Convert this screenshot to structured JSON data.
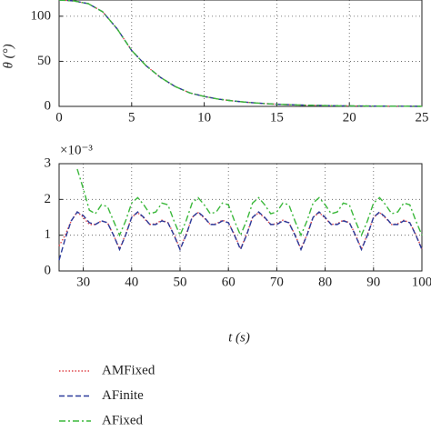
{
  "chart_data": [
    {
      "type": "line",
      "ylabel": "θ (°)",
      "xlim": [
        0,
        25
      ],
      "ylim": [
        0,
        118
      ],
      "xticks": [
        0,
        5,
        10,
        15,
        20,
        25
      ],
      "yticks": [
        0,
        50,
        100
      ],
      "grid": true,
      "x": [
        0,
        1,
        2,
        3,
        4,
        5,
        6,
        7,
        8,
        9,
        10,
        11,
        12,
        13,
        14,
        15,
        16,
        17,
        18,
        19,
        20,
        21,
        22,
        23,
        24,
        25
      ],
      "series": [
        {
          "name": "AMFixed",
          "color": "#e0474c",
          "linestyle": "dotted",
          "values": [
            118,
            117,
            114,
            105,
            86,
            62,
            45,
            32,
            22,
            15,
            11,
            8,
            6,
            4.5,
            3.3,
            2.4,
            1.8,
            1.3,
            1,
            0.7,
            0.5,
            0.4,
            0.3,
            0.2,
            0.15,
            0.1
          ]
        },
        {
          "name": "AFinite",
          "color": "#2b3a9a",
          "linestyle": "dashed",
          "values": [
            118,
            117,
            114,
            105,
            86,
            62,
            45,
            32,
            22,
            15,
            11,
            8,
            6,
            4.5,
            3.3,
            2.4,
            1.8,
            1.3,
            1,
            0.7,
            0.5,
            0.4,
            0.3,
            0.2,
            0.15,
            0.1
          ]
        },
        {
          "name": "AFixed",
          "color": "#3bb83b",
          "linestyle": "dashdot",
          "values": [
            118,
            117,
            114,
            105,
            86,
            62,
            45,
            32,
            22,
            15,
            11,
            8,
            6,
            4.5,
            3.3,
            2.4,
            1.8,
            1.3,
            1,
            0.7,
            0.5,
            0.4,
            0.3,
            0.2,
            0.15,
            0.1
          ]
        }
      ]
    },
    {
      "type": "line",
      "xlabel": "t (s)",
      "scale_label": "×10⁻³",
      "xlim": [
        25,
        100
      ],
      "ylim": [
        0,
        3
      ],
      "xticks": [
        30,
        40,
        50,
        60,
        70,
        80,
        90,
        100
      ],
      "yticks": [
        0,
        1,
        2,
        3
      ],
      "grid": true,
      "legend": "below",
      "x": [
        25,
        26.25,
        27.5,
        28.75,
        30,
        31.25,
        32.5,
        33.75,
        35,
        36.25,
        37.5,
        38.75,
        40,
        41.25,
        42.5,
        43.75,
        45,
        46.25,
        47.5,
        48.75,
        50,
        51.25,
        52.5,
        53.75,
        55,
        56.25,
        57.5,
        58.75,
        60,
        61.25,
        62.5,
        63.75,
        65,
        66.25,
        67.5,
        68.75,
        70,
        71.25,
        72.5,
        73.75,
        75,
        76.25,
        77.5,
        78.75,
        80,
        81.25,
        82.5,
        83.75,
        85,
        86.25,
        87.5,
        88.75,
        90,
        91.25,
        92.5,
        93.75,
        95,
        96.25,
        97.5,
        98.75,
        100
      ],
      "series": [
        {
          "name": "AMFixed",
          "color": "#e0474c",
          "linestyle": "dotted",
          "values": [
            0.7,
            1.0,
            1.4,
            1.65,
            1.5,
            1.3,
            1.3,
            1.4,
            1.35,
            1.0,
            0.62,
            1.02,
            1.5,
            1.63,
            1.48,
            1.3,
            1.32,
            1.42,
            1.35,
            1.02,
            0.62,
            1.02,
            1.5,
            1.63,
            1.48,
            1.3,
            1.32,
            1.42,
            1.35,
            1.02,
            0.62,
            1.02,
            1.5,
            1.63,
            1.48,
            1.3,
            1.32,
            1.42,
            1.35,
            1.02,
            0.62,
            1.02,
            1.5,
            1.63,
            1.48,
            1.3,
            1.32,
            1.42,
            1.35,
            1.02,
            0.62,
            1.02,
            1.5,
            1.63,
            1.48,
            1.3,
            1.32,
            1.42,
            1.35,
            1.02,
            0.62
          ]
        },
        {
          "name": "AFinite",
          "color": "#2b3a9a",
          "linestyle": "dashed",
          "values": [
            0.3,
            0.9,
            1.4,
            1.65,
            1.55,
            1.35,
            1.3,
            1.4,
            1.35,
            1.0,
            0.6,
            1.0,
            1.5,
            1.65,
            1.5,
            1.3,
            1.3,
            1.4,
            1.35,
            1.0,
            0.6,
            1.0,
            1.5,
            1.65,
            1.5,
            1.3,
            1.3,
            1.4,
            1.35,
            1.0,
            0.6,
            1.0,
            1.5,
            1.65,
            1.5,
            1.3,
            1.3,
            1.4,
            1.35,
            1.0,
            0.6,
            1.0,
            1.5,
            1.65,
            1.5,
            1.3,
            1.3,
            1.4,
            1.35,
            1.0,
            0.6,
            1.0,
            1.5,
            1.65,
            1.5,
            1.3,
            1.3,
            1.4,
            1.35,
            1.0,
            0.6
          ]
        },
        {
          "name": "AFixed",
          "color": "#3bb83b",
          "linestyle": "dashdot",
          "values": [
            null,
            null,
            null,
            2.85,
            2.3,
            1.7,
            1.6,
            1.85,
            1.8,
            1.4,
            1.0,
            1.4,
            1.9,
            2.05,
            1.85,
            1.6,
            1.65,
            1.9,
            1.85,
            1.4,
            1.0,
            1.4,
            1.9,
            2.05,
            1.85,
            1.6,
            1.65,
            1.9,
            1.85,
            1.4,
            1.0,
            1.4,
            1.9,
            2.05,
            1.85,
            1.6,
            1.65,
            1.9,
            1.85,
            1.4,
            1.0,
            1.4,
            1.9,
            2.05,
            1.85,
            1.6,
            1.65,
            1.9,
            1.85,
            1.4,
            1.0,
            1.4,
            1.9,
            2.05,
            1.85,
            1.6,
            1.65,
            1.9,
            1.85,
            1.4,
            1.0
          ]
        }
      ]
    }
  ]
}
